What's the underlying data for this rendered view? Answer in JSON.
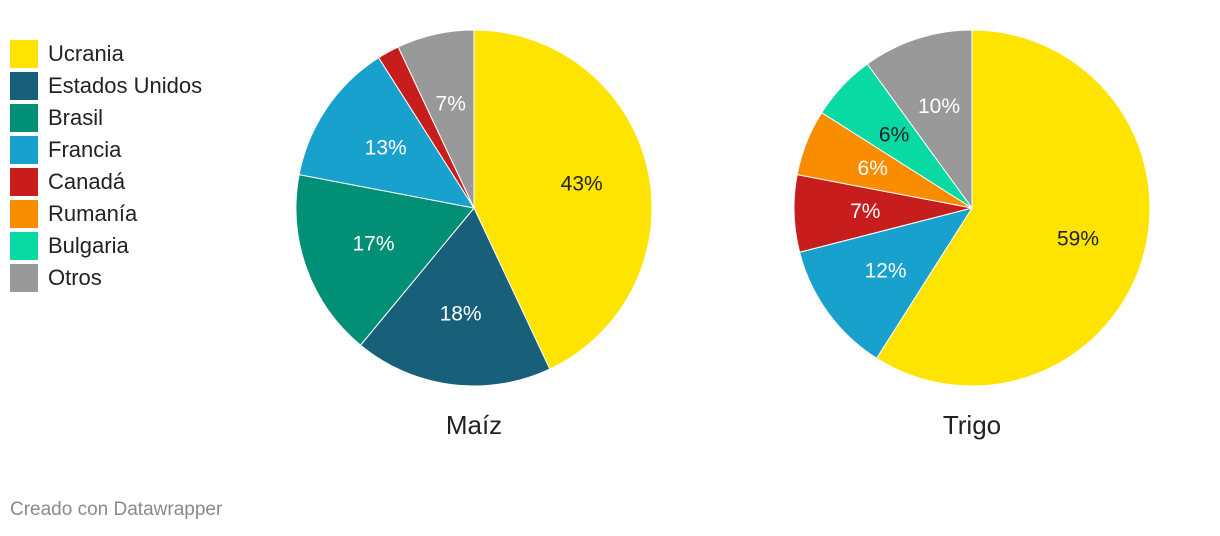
{
  "legend": [
    {
      "label": "Ucrania",
      "color": "#fee400"
    },
    {
      "label": "Estados Unidos",
      "color": "#18607a"
    },
    {
      "label": "Brasil",
      "color": "#018f76"
    },
    {
      "label": "Francia",
      "color": "#18a1cd"
    },
    {
      "label": "Canadá",
      "color": "#c71e1d"
    },
    {
      "label": "Rumanía",
      "color": "#fa8c00"
    },
    {
      "label": "Bulgaria",
      "color": "#09d9a3"
    },
    {
      "label": "Otros",
      "color": "#999999"
    }
  ],
  "chart_data": [
    {
      "type": "pie",
      "title": "Maíz",
      "slices": [
        {
          "name": "Ucrania",
          "value": 43,
          "label": "43%",
          "color": "#fee400",
          "label_color": "#222222"
        },
        {
          "name": "Estados Unidos",
          "value": 18,
          "label": "18%",
          "color": "#18607a",
          "label_color": "#ffffff"
        },
        {
          "name": "Brasil",
          "value": 17,
          "label": "17%",
          "color": "#018f76",
          "label_color": "#ffffff"
        },
        {
          "name": "Francia",
          "value": 13,
          "label": "13%",
          "color": "#18a1cd",
          "label_color": "#ffffff"
        },
        {
          "name": "Canadá",
          "value": 2,
          "label": "",
          "color": "#c71e1d",
          "label_color": "#ffffff"
        },
        {
          "name": "Otros",
          "value": 7,
          "label": "7%",
          "color": "#999999",
          "label_color": "#ffffff"
        }
      ]
    },
    {
      "type": "pie",
      "title": "Trigo",
      "slices": [
        {
          "name": "Ucrania",
          "value": 59,
          "label": "59%",
          "color": "#fee400",
          "label_color": "#222222"
        },
        {
          "name": "Francia",
          "value": 12,
          "label": "12%",
          "color": "#18a1cd",
          "label_color": "#ffffff"
        },
        {
          "name": "Canadá",
          "value": 7,
          "label": "7%",
          "color": "#c71e1d",
          "label_color": "#ffffff"
        },
        {
          "name": "Rumanía",
          "value": 6,
          "label": "6%",
          "color": "#fa8c00",
          "label_color": "#ffffff"
        },
        {
          "name": "Bulgaria",
          "value": 6,
          "label": "6%",
          "color": "#09d9a3",
          "label_color": "#222222"
        },
        {
          "name": "Otros",
          "value": 10,
          "label": "10%",
          "color": "#999999",
          "label_color": "#ffffff"
        }
      ]
    }
  ],
  "footer": {
    "credit": "Creado con Datawrapper"
  }
}
